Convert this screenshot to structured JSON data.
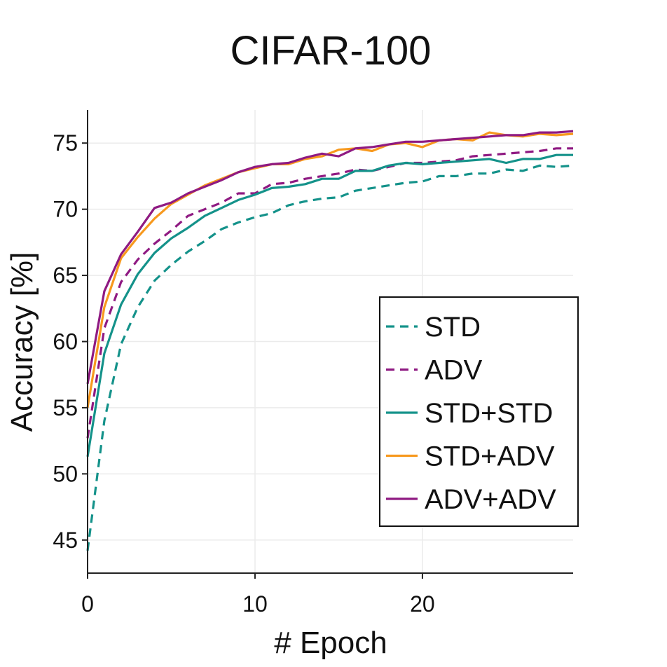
{
  "chart_data": {
    "type": "line",
    "title": "CIFAR-100",
    "xlabel": "# Epoch",
    "ylabel": "Accuracy [%]",
    "xlim": [
      0,
      29
    ],
    "ylim": [
      42.5,
      77.5
    ],
    "xticks": [
      0,
      10,
      20
    ],
    "yticks": [
      45,
      50,
      55,
      60,
      65,
      70,
      75
    ],
    "grid": true,
    "legend_position": "lower-right",
    "x": [
      0,
      1,
      2,
      3,
      4,
      5,
      6,
      7,
      8,
      9,
      10,
      11,
      12,
      13,
      14,
      15,
      16,
      17,
      18,
      19,
      20,
      21,
      22,
      23,
      24,
      25,
      26,
      27,
      28,
      29
    ],
    "series": [
      {
        "name": "STD",
        "color": "#14928a",
        "dash": "dashed",
        "values": [
          44.2,
          54.0,
          59.8,
          62.6,
          64.6,
          65.8,
          66.8,
          67.6,
          68.5,
          69.0,
          69.4,
          69.7,
          70.3,
          70.6,
          70.8,
          70.9,
          71.4,
          71.6,
          71.8,
          72.0,
          72.1,
          72.5,
          72.5,
          72.7,
          72.7,
          73.0,
          72.9,
          73.3,
          73.2,
          73.3
        ]
      },
      {
        "name": "ADV",
        "color": "#8f1a82",
        "dash": "dashed",
        "values": [
          52.7,
          61.0,
          64.5,
          66.2,
          67.4,
          68.4,
          69.5,
          70.0,
          70.5,
          71.2,
          71.2,
          71.9,
          72.0,
          72.3,
          72.5,
          72.7,
          73.0,
          72.9,
          73.2,
          73.5,
          73.5,
          73.6,
          73.7,
          74.0,
          74.1,
          74.2,
          74.3,
          74.4,
          74.6,
          74.6
        ]
      },
      {
        "name": "STD+STD",
        "color": "#14928a",
        "dash": "solid",
        "values": [
          51.3,
          59.1,
          62.8,
          65.1,
          66.7,
          67.8,
          68.6,
          69.5,
          70.1,
          70.7,
          71.1,
          71.6,
          71.7,
          71.9,
          72.3,
          72.3,
          72.9,
          72.9,
          73.3,
          73.5,
          73.4,
          73.5,
          73.6,
          73.7,
          73.8,
          73.5,
          73.8,
          73.8,
          74.1,
          74.1
        ]
      },
      {
        "name": "STD+ADV",
        "color": "#f7991e",
        "dash": "solid",
        "values": [
          55.0,
          62.6,
          66.3,
          67.9,
          69.3,
          70.4,
          71.1,
          71.8,
          72.3,
          72.8,
          73.1,
          73.4,
          73.4,
          73.8,
          74.0,
          74.5,
          74.6,
          74.4,
          74.9,
          75.0,
          74.7,
          75.2,
          75.3,
          75.2,
          75.8,
          75.6,
          75.5,
          75.7,
          75.6,
          75.7
        ]
      },
      {
        "name": "ADV+ADV",
        "color": "#8f1a82",
        "dash": "solid",
        "values": [
          56.8,
          63.8,
          66.6,
          68.3,
          70.1,
          70.5,
          71.2,
          71.7,
          72.2,
          72.8,
          73.2,
          73.4,
          73.5,
          73.9,
          74.2,
          74.0,
          74.6,
          74.7,
          74.9,
          75.1,
          75.1,
          75.2,
          75.3,
          75.4,
          75.5,
          75.6,
          75.6,
          75.8,
          75.8,
          75.9
        ]
      }
    ]
  }
}
